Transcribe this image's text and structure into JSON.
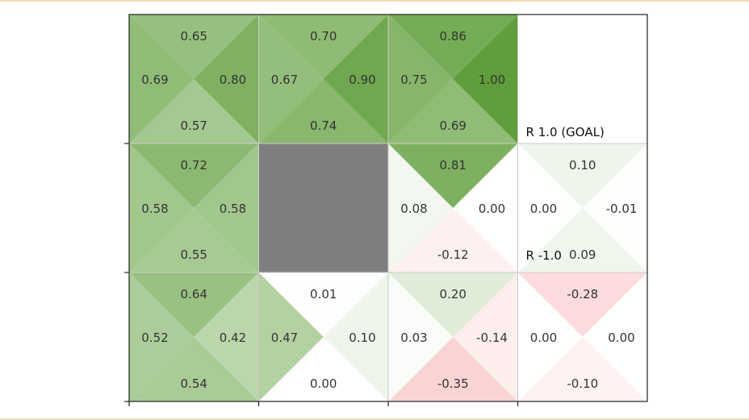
{
  "chart_data": {
    "type": "heatmap",
    "rows": 3,
    "cols": 4,
    "value_range": [
      -1.0,
      1.0
    ],
    "colors": {
      "positive": "#5f9e3a",
      "negative": "#f08080",
      "zero": "#ffffff",
      "wall": "#7f7f7f",
      "gridline": "#cccccc"
    },
    "cells": [
      {
        "row": 0,
        "col": 0,
        "up": 0.65,
        "left": 0.69,
        "right": 0.8,
        "down": 0.57,
        "labels": {
          "up": "0.65",
          "left": "0.69",
          "right": "0.80",
          "down": "0.57"
        }
      },
      {
        "row": 0,
        "col": 1,
        "up": 0.7,
        "left": 0.67,
        "right": 0.9,
        "down": 0.74,
        "labels": {
          "up": "0.70",
          "left": "0.67",
          "right": "0.90",
          "down": "0.74"
        }
      },
      {
        "row": 0,
        "col": 2,
        "up": 0.86,
        "left": 0.75,
        "right": 1.0,
        "down": 0.69,
        "labels": {
          "up": "0.86",
          "left": "0.75",
          "right": "1.00",
          "down": "0.69"
        }
      },
      {
        "row": 0,
        "col": 3,
        "terminal": true,
        "reward_label": "R 1.0 (GOAL)"
      },
      {
        "row": 1,
        "col": 0,
        "up": 0.72,
        "left": 0.58,
        "right": 0.58,
        "down": 0.55,
        "labels": {
          "up": "0.72",
          "left": "0.58",
          "right": "0.58",
          "down": "0.55"
        }
      },
      {
        "row": 1,
        "col": 1,
        "wall": true
      },
      {
        "row": 1,
        "col": 2,
        "up": 0.81,
        "left": 0.08,
        "right": 0.0,
        "down": -0.12,
        "labels": {
          "up": "0.81",
          "left": "0.08",
          "right": "0.00",
          "down": "-0.12"
        }
      },
      {
        "row": 1,
        "col": 3,
        "up": 0.1,
        "left": 0.0,
        "right": -0.01,
        "down": 0.09,
        "labels": {
          "up": "0.10",
          "left": "0.00",
          "right": "-0.01",
          "down": "0.09"
        },
        "reward_label": "R -1.0"
      },
      {
        "row": 2,
        "col": 0,
        "up": 0.64,
        "left": 0.52,
        "right": 0.42,
        "down": 0.54,
        "labels": {
          "up": "0.64",
          "left": "0.52",
          "right": "0.42",
          "down": "0.54"
        }
      },
      {
        "row": 2,
        "col": 1,
        "up": 0.01,
        "left": 0.47,
        "right": 0.1,
        "down": 0.0,
        "labels": {
          "up": "0.01",
          "left": "0.47",
          "right": "0.10",
          "down": "0.00"
        }
      },
      {
        "row": 2,
        "col": 2,
        "up": 0.2,
        "left": 0.03,
        "right": -0.14,
        "down": -0.35,
        "labels": {
          "up": "0.20",
          "left": "0.03",
          "right": "-0.14",
          "down": "-0.35"
        }
      },
      {
        "row": 2,
        "col": 3,
        "up": -0.28,
        "left": 0.0,
        "right": 0.0,
        "down": -0.1,
        "labels": {
          "up": "-0.28",
          "left": "0.00",
          "right": "0.00",
          "down": "-0.10"
        }
      }
    ]
  }
}
